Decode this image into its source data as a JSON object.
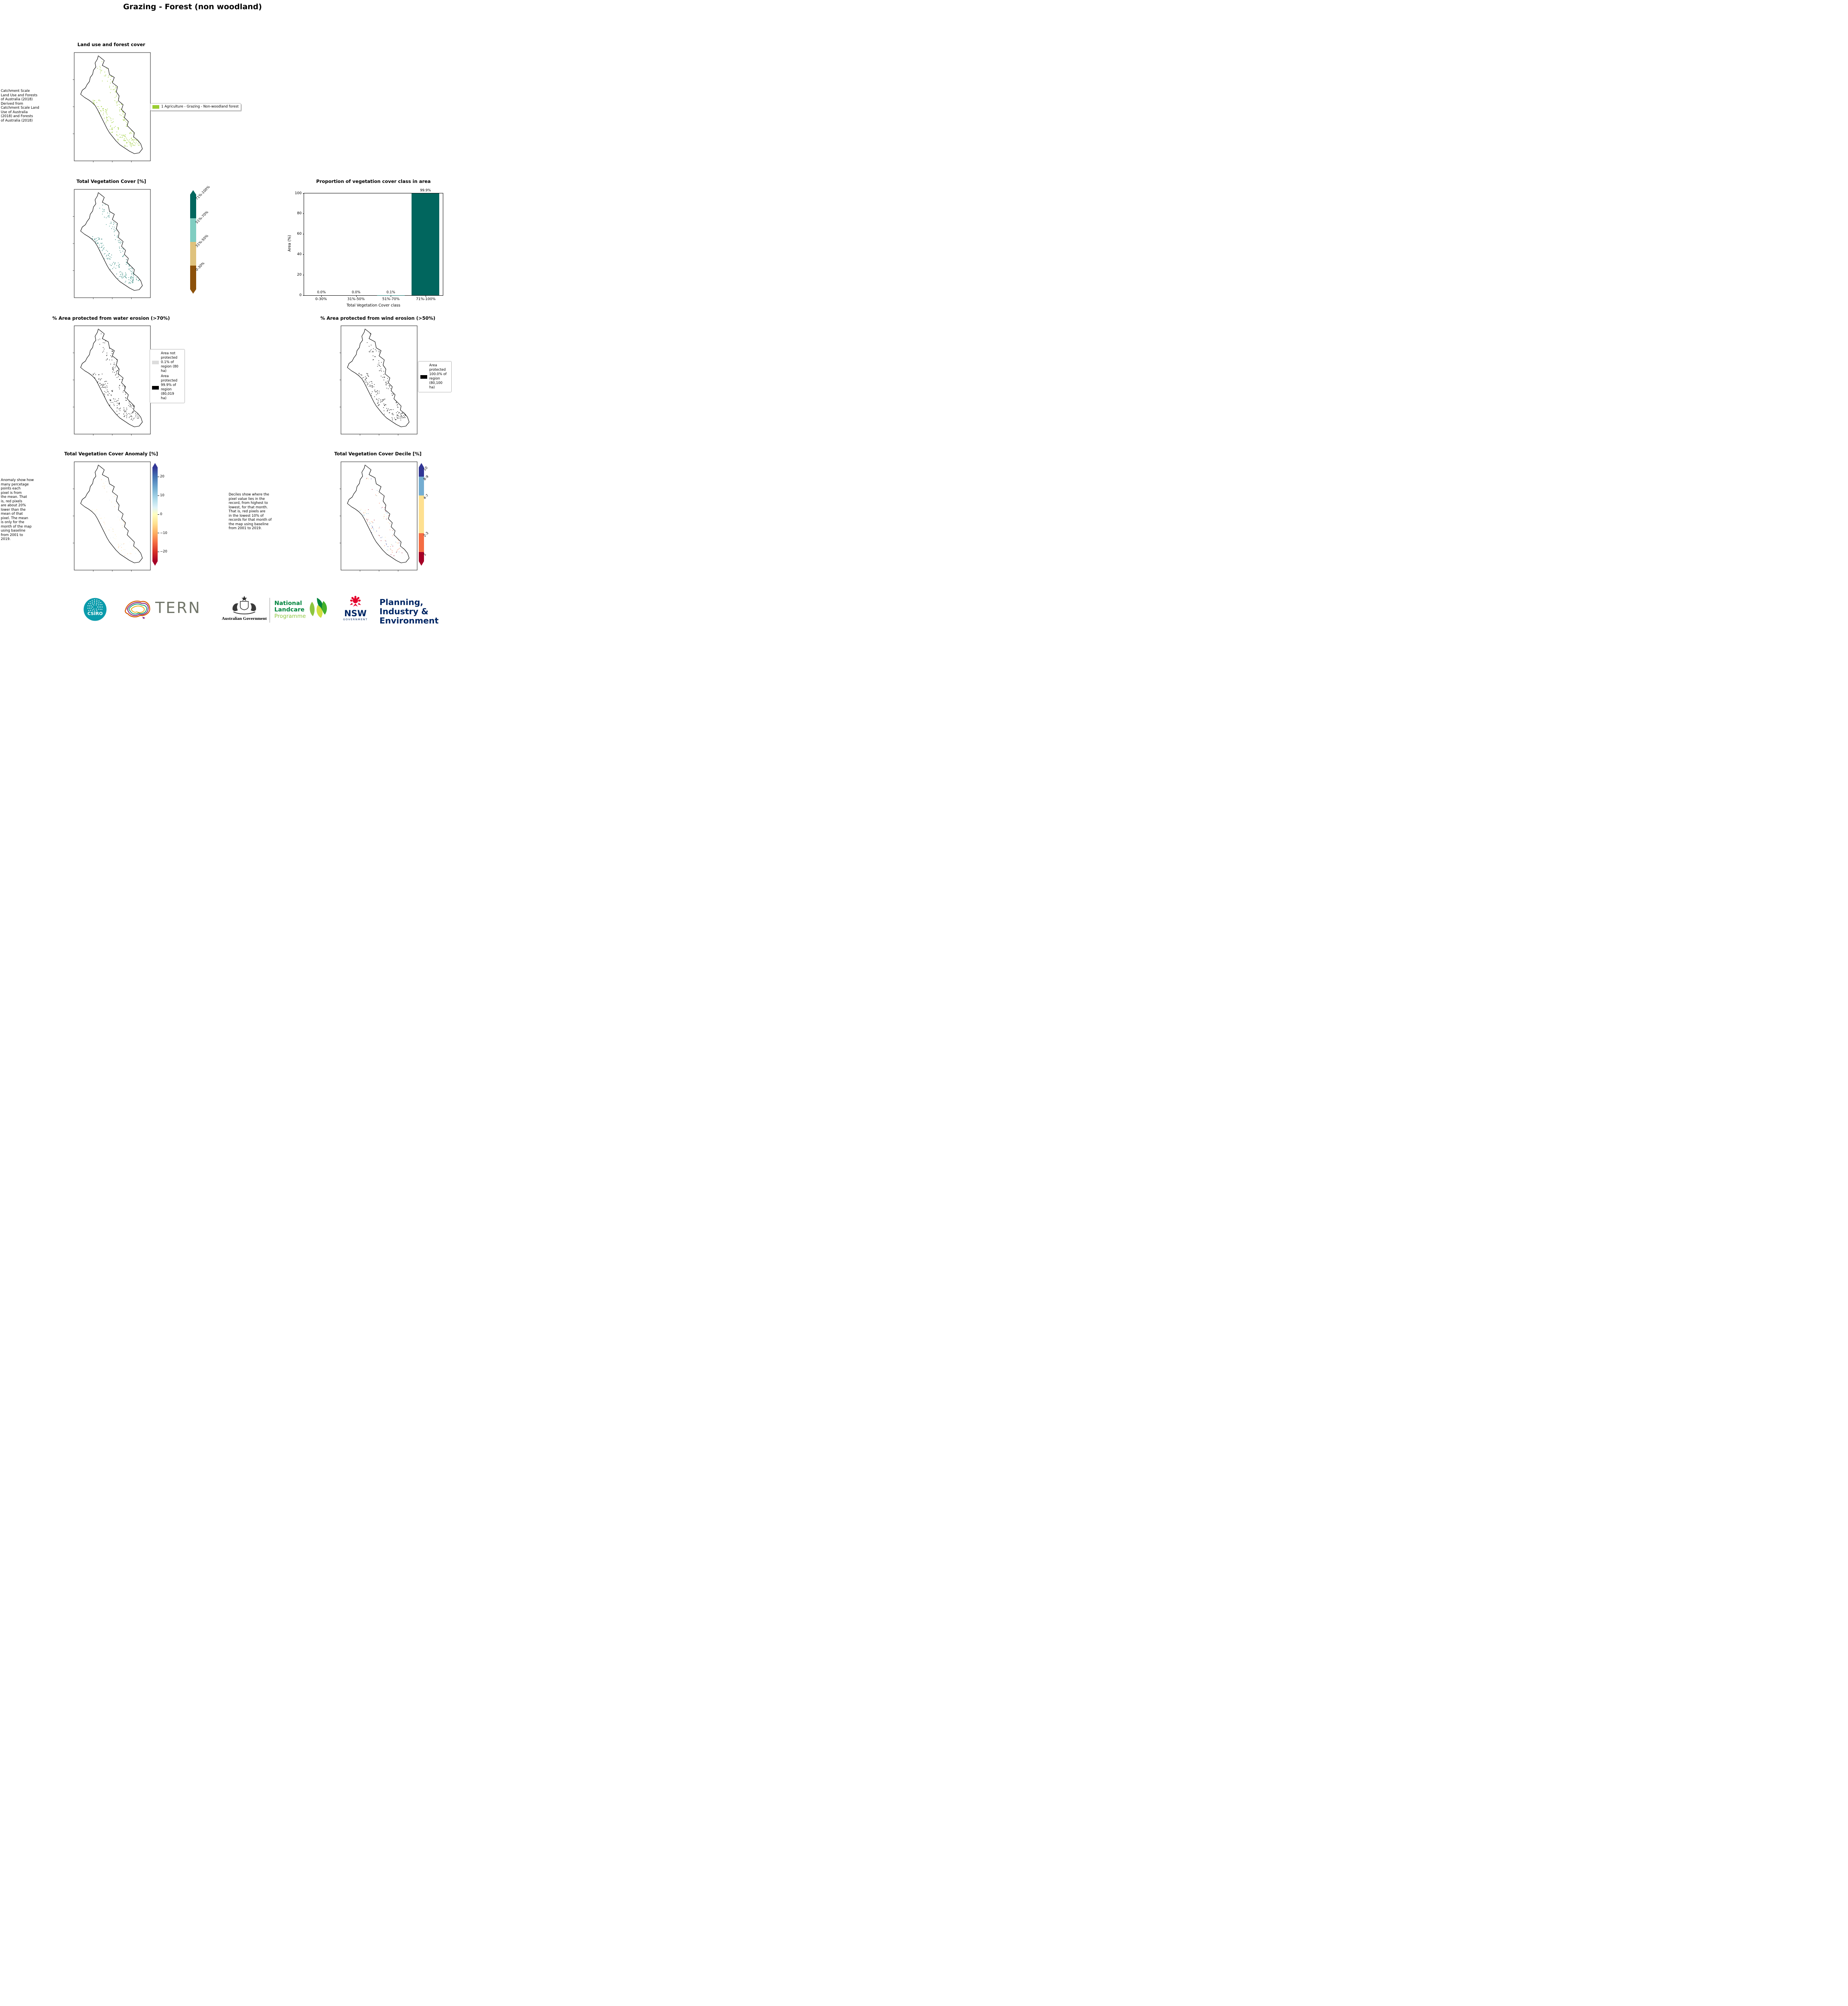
{
  "page_title": "Grazing - Forest (non woodland)",
  "landuse": {
    "title": "Land use and forest cover",
    "side_note": " Catchment Scale\nLand Use and Forests\nof Australia (2018)\nDerived from\nCatchment Scale Land\nUse of Australia\n(2018) and Forests\nof Australia (2018)",
    "legend": {
      "swatch_color": "#9acd32",
      "label": "1 Agriculture - Grazing - Non-woodland forest"
    }
  },
  "tvc": {
    "title": "Total Vegetation Cover [%]",
    "colorbar": [
      {
        "label": "71%-100%",
        "color": "#01665e"
      },
      {
        "label": "51%-70%",
        "color": "#80cdc1"
      },
      {
        "label": "31%-50%",
        "color": "#dfc27d"
      },
      {
        "label": "0-30%",
        "color": "#8c510a"
      }
    ]
  },
  "chart_data": {
    "type": "bar",
    "title": "Proportion of vegetation cover class in area",
    "categories": [
      "0-30%",
      "31%-50%",
      "51%-70%",
      "71%-100%"
    ],
    "values": [
      0.0,
      0.0,
      0.1,
      99.9
    ],
    "value_labels": [
      "0.0%",
      "0.0%",
      "0.1%",
      "99.9%"
    ],
    "xlabel": "Total Vegetation Cover class",
    "ylabel": "Area (%)",
    "ylim": [
      0,
      100
    ],
    "yticks": [
      0,
      20,
      40,
      60,
      80,
      100
    ],
    "bar_color": "#01665e",
    "grid": false,
    "legend": "none"
  },
  "water": {
    "title": "% Area protected from water erosion (>70%)",
    "legend": [
      {
        "label": "Area not\nprotected\n0.1% of\nregion (80\nha)",
        "color": "#dcdcdc"
      },
      {
        "label": "Area\nprotected\n99.9% of\nregion\n(80,019\nha)",
        "color": "#000000"
      }
    ]
  },
  "wind": {
    "title": "% Area protected from wind erosion (>50%)",
    "legend": [
      {
        "label": "Area\nprotected\n100.0% of\nregion\n(80,100\nha)",
        "color": "#000000"
      }
    ]
  },
  "anomaly": {
    "title": "Total Vegetation Cover Anomaly [%]",
    "side_note": "Anomaly show how\nmany percetage\npoints each\npixel is from\nthe mean. That\nis, red pixels\nare about 20%\nlower than the\nmean of that\npixel. The mean\nis only for the\nmonth of the map\nusing baseline\nfrom 2001 to\n2019.",
    "colorbar_ticks": [
      "20",
      "10",
      "0",
      "−10",
      "−20"
    ],
    "colormap_top_to_bottom": [
      "#313695",
      "#4575b4",
      "#74add1",
      "#abd9e9",
      "#e0f3f8",
      "#ffffbf",
      "#fee090",
      "#fdae61",
      "#f46d43",
      "#d73027",
      "#a50026"
    ]
  },
  "decile": {
    "title": "Total Vegetation Cover Decile [%]",
    "note": "Deciles show where the\npixel value lies in the\nrecord, from highest to\nlowest, for that month.\nThat is, red pixels are\nin the lowest 10% of\nrecords for that month of\nthe map using baseline\nfrom 2001 to 2019.",
    "colorbar": [
      {
        "label": "10",
        "color": "#313695",
        "height_pct": 10
      },
      {
        "label": "8-9",
        "color": "#74add1",
        "height_pct": 20
      },
      {
        "label": "4-7",
        "color": "#fee090",
        "height_pct": 40
      },
      {
        "label": "2-3",
        "color": "#f46d43",
        "height_pct": 20
      },
      {
        "label": "1",
        "color": "#a50026",
        "height_pct": 10
      }
    ]
  },
  "footer": {
    "csiro_label": "CSIRO",
    "tern_label": "TERN",
    "aus_gov_label": "Australian Government",
    "landcare": {
      "line1": "National",
      "line2": "Landcare",
      "line3": "Programme"
    },
    "nsw_label": "NSW",
    "nsw_gov_label": "GOVERNMENT",
    "pie": {
      "line1": "Planning,",
      "line2": "Industry &",
      "line3": "Environment"
    }
  }
}
